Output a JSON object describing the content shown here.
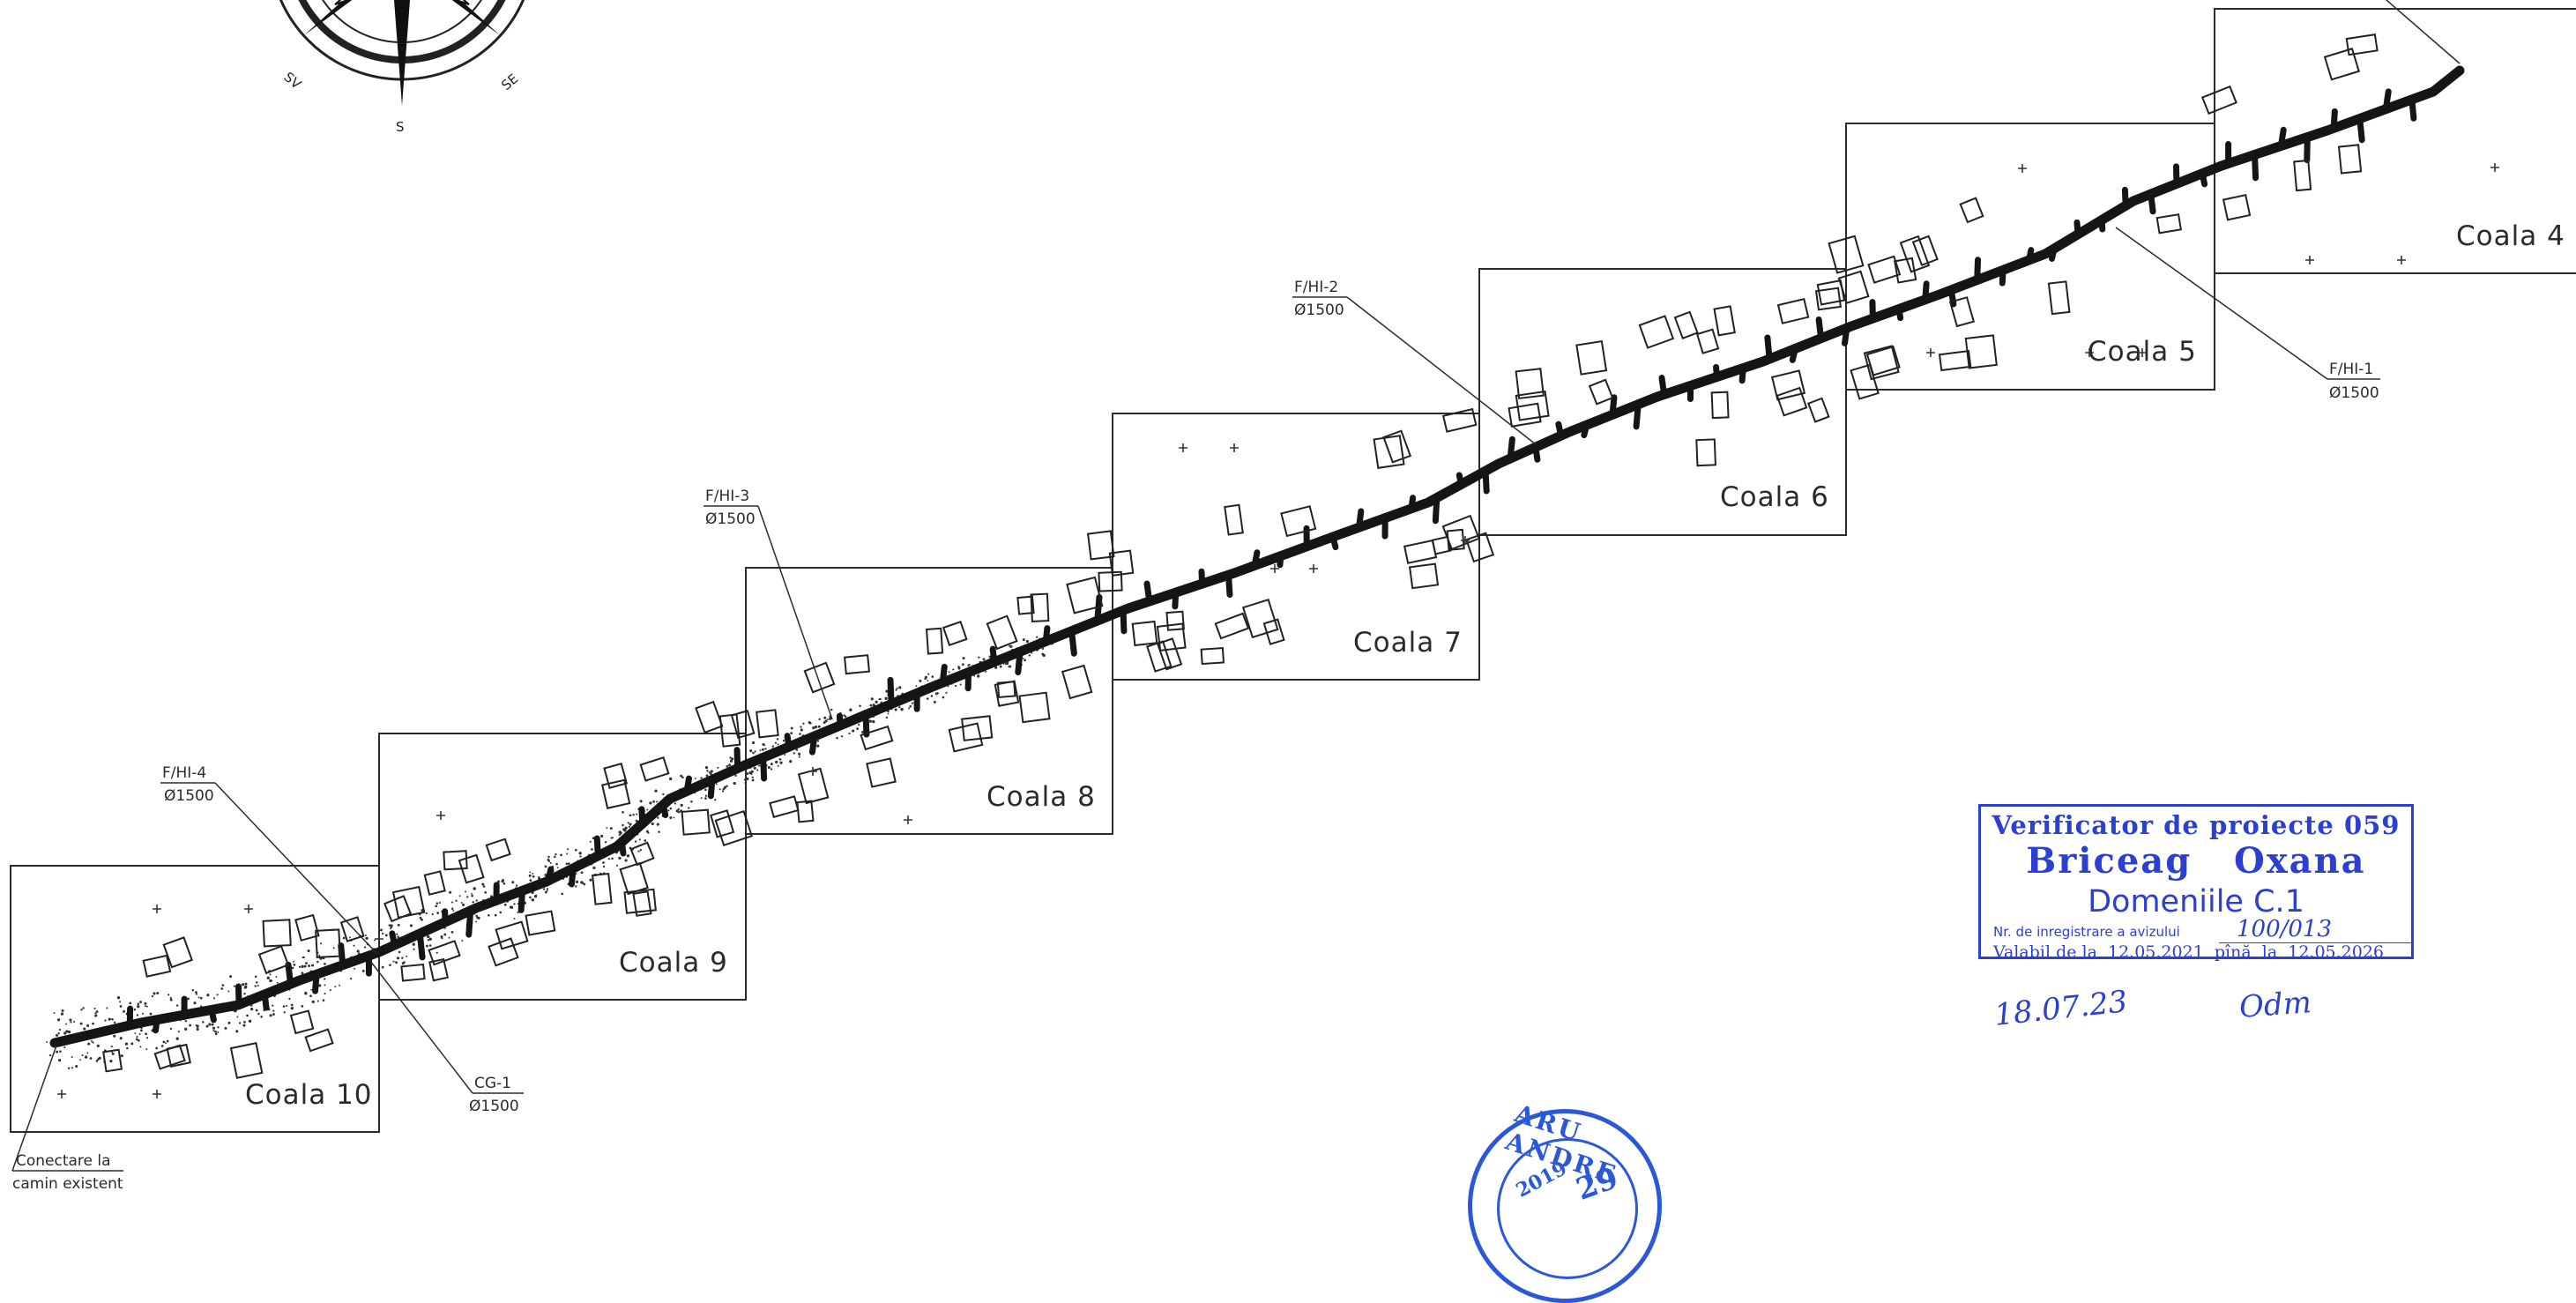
{
  "compass": {
    "labels": [
      "S",
      "SV",
      "SE"
    ],
    "icon": "compass-rose-icon"
  },
  "sheets": [
    {
      "id": "coala-4",
      "label": "Coala 4"
    },
    {
      "id": "coala-5",
      "label": "Coala 5"
    },
    {
      "id": "coala-6",
      "label": "Coala 6"
    },
    {
      "id": "coala-7",
      "label": "Coala 7"
    },
    {
      "id": "coala-8",
      "label": "Coala 8"
    },
    {
      "id": "coala-9",
      "label": "Coala 9"
    },
    {
      "id": "coala-10",
      "label": "Coala 10"
    }
  ],
  "callouts": [
    {
      "id": "f-hi-1",
      "name": "F/HI-1",
      "diameter": "Ø1500"
    },
    {
      "id": "f-hi-2",
      "name": "F/HI-2",
      "diameter": "Ø1500"
    },
    {
      "id": "f-hi-3",
      "name": "F/HI-3",
      "diameter": "Ø1500"
    },
    {
      "id": "f-hi-4",
      "name": "F/HI-4",
      "diameter": "Ø1500"
    },
    {
      "id": "cg-1",
      "name": "CG-1",
      "diameter": "Ø1500"
    }
  ],
  "connection_note": [
    "Conectare la",
    "camin existent"
  ],
  "verifier_stamp": {
    "line1": "Verificator de proiecte 059",
    "line2": "Briceag   Oxana",
    "line3": "Domeniile C.1",
    "registration_label": "Nr. de inregistrare a avizului",
    "registration_value": "100/013",
    "validity": "Valabil de la  12.05.2021  pînă  la  12.05.2026",
    "handwritten_date": "18.07.23",
    "handwritten_signature": "Odm"
  },
  "round_stamp": {
    "text": "ARU ANDRE",
    "year": "2019",
    "number": "29"
  },
  "colors": {
    "ink": "#151515",
    "stamp_blue": "#2b3fd0",
    "round_stamp_blue": "#2b58d8"
  }
}
